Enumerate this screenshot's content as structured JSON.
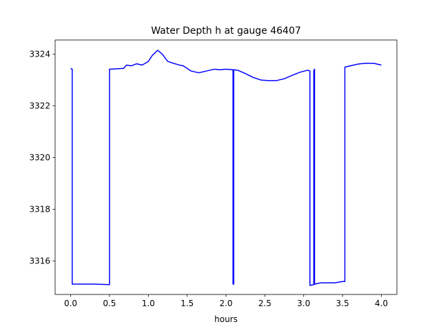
{
  "chart_data": {
    "type": "line",
    "title": "Water Depth h at gauge 46407",
    "xlabel": "hours",
    "ylabel": "",
    "xlim": [
      -0.2,
      4.2
    ],
    "ylim": [
      3314.7,
      3324.55
    ],
    "xticks": [
      0.0,
      0.5,
      1.0,
      1.5,
      2.0,
      2.5,
      3.0,
      3.5,
      4.0
    ],
    "xtick_labels": [
      "0.0",
      "0.5",
      "1.0",
      "1.5",
      "2.0",
      "2.5",
      "3.0",
      "3.5",
      "4.0"
    ],
    "yticks": [
      3316,
      3318,
      3320,
      3322,
      3324
    ],
    "ytick_labels": [
      "3316",
      "3318",
      "3320",
      "3322",
      "3324"
    ],
    "grid": false,
    "legend": "none",
    "series": [
      {
        "color": "#0000ff",
        "x": [
          0.0,
          0.02,
          0.02,
          0.3,
          0.5,
          0.5,
          0.68,
          0.72,
          0.78,
          0.85,
          0.92,
          1.0,
          1.05,
          1.12,
          1.18,
          1.25,
          1.32,
          1.4,
          1.45,
          1.55,
          1.65,
          1.75,
          1.85,
          1.92,
          2.0,
          2.09,
          2.09,
          2.1,
          2.1,
          2.15,
          2.25,
          2.35,
          2.45,
          2.55,
          2.65,
          2.75,
          2.85,
          2.95,
          3.05,
          3.08,
          3.08,
          3.13,
          3.13,
          3.14,
          3.14,
          3.15,
          3.17,
          3.22,
          3.3,
          3.4,
          3.5,
          3.53,
          3.53,
          3.6,
          3.7,
          3.8,
          3.9,
          4.0
        ],
        "y": [
          3323.45,
          3323.42,
          3315.1,
          3315.1,
          3315.08,
          3323.42,
          3323.45,
          3323.58,
          3323.55,
          3323.63,
          3323.58,
          3323.72,
          3323.95,
          3324.15,
          3324.0,
          3323.72,
          3323.65,
          3323.58,
          3323.55,
          3323.35,
          3323.28,
          3323.35,
          3323.42,
          3323.4,
          3323.42,
          3323.4,
          3315.1,
          3315.1,
          3323.4,
          3323.38,
          3323.25,
          3323.1,
          3323.0,
          3322.98,
          3322.98,
          3323.05,
          3323.18,
          3323.3,
          3323.38,
          3323.35,
          3315.05,
          3315.08,
          3323.35,
          3323.42,
          3315.1,
          3315.1,
          3315.12,
          3315.15,
          3315.15,
          3315.15,
          3315.2,
          3315.2,
          3323.5,
          3323.55,
          3323.62,
          3323.65,
          3323.65,
          3323.58
        ]
      }
    ]
  }
}
